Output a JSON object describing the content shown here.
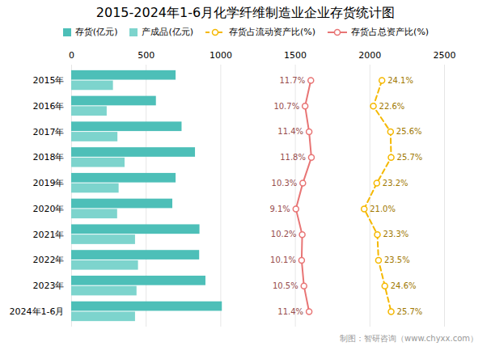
{
  "chart_data": {
    "type": "bar",
    "orientation": "horizontal",
    "title": "2015-2024年1-6月化学纤维制造业企业存货统计图",
    "caption": "制图：智研咨询（www.chyxx.com）",
    "categories": [
      "2015年",
      "2016年",
      "2017年",
      "2018年",
      "2019年",
      "2020年",
      "2021年",
      "2022年",
      "2023年",
      "2024年1-6月"
    ],
    "xlim": [
      0,
      2500
    ],
    "xticks": [
      0,
      500,
      1000,
      1500,
      2000,
      2500
    ],
    "x2lim": [
      -30,
      35
    ],
    "grid": true,
    "legend": "top",
    "series": [
      {
        "name": "存货(亿元)",
        "color": "#4dbfb8",
        "values": [
          700,
          568,
          740,
          830,
          700,
          678,
          860,
          858,
          900,
          1010
        ]
      },
      {
        "name": "产成品(亿元)",
        "color": "#7dd4cd",
        "values": [
          280,
          238,
          310,
          358,
          318,
          308,
          428,
          448,
          438,
          428
        ]
      },
      {
        "name": "存货占流动资产比(%)",
        "type": "line",
        "axis": "x2",
        "color": "#f5b800",
        "line_style": "dashed",
        "marker": "circle",
        "data_labels": true,
        "values": [
          24.1,
          22.6,
          25.6,
          25.7,
          23.2,
          21.0,
          23.3,
          23.5,
          24.6,
          25.7
        ],
        "value_labels": [
          "24.1%",
          "22.6%",
          "25.6%",
          "25.7%",
          "23.2%",
          "21.0%",
          "23.3%",
          "23.5%",
          "24.6%",
          "25.7%"
        ]
      },
      {
        "name": "存货占总资产比(%)",
        "type": "line",
        "axis": "x2",
        "color": "#e87575",
        "line_style": "solid",
        "marker": "circle",
        "data_labels": true,
        "values": [
          11.7,
          10.7,
          11.4,
          11.8,
          10.3,
          9.1,
          10.2,
          10.1,
          10.5,
          11.4
        ],
        "value_labels": [
          "11.7%",
          "10.7%",
          "11.4%",
          "11.8%",
          "10.3%",
          "9.1%",
          "10.2%",
          "10.1%",
          "10.5%",
          "11.4%"
        ]
      }
    ]
  }
}
